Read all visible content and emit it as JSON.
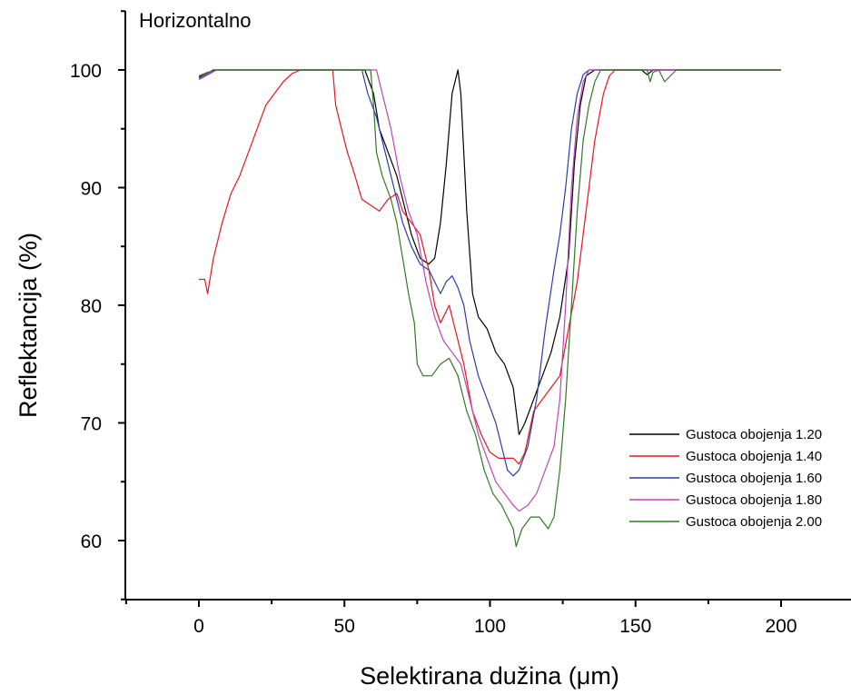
{
  "chart_data": {
    "type": "line",
    "title": "Horizontalno",
    "xlabel": "Selektirana dužina (μm)",
    "ylabel": "Reflektancija (%)",
    "xlim": [
      -25,
      225
    ],
    "ylim": [
      55,
      105
    ],
    "xticks": [
      0,
      50,
      100,
      150,
      200
    ],
    "yticks": [
      60,
      70,
      80,
      90,
      100
    ],
    "x_tick_labels": [
      "0",
      "50",
      "100",
      "150",
      "200"
    ],
    "y_tick_labels": [
      "60",
      "70",
      "80",
      "90",
      "100"
    ],
    "grid": false,
    "legend_position": "lower-right",
    "series": [
      {
        "name": "Gustoca obojenja 1.20",
        "color": "#000000",
        "points": [
          [
            0,
            99.4
          ],
          [
            2,
            99.6
          ],
          [
            5,
            100
          ],
          [
            57,
            100
          ],
          [
            60,
            98
          ],
          [
            62,
            95
          ],
          [
            65,
            93
          ],
          [
            68,
            91
          ],
          [
            70,
            89
          ],
          [
            73,
            86
          ],
          [
            76,
            84
          ],
          [
            79,
            83.5
          ],
          [
            81,
            84
          ],
          [
            83,
            87
          ],
          [
            85,
            92
          ],
          [
            87,
            98
          ],
          [
            89,
            100
          ],
          [
            90,
            98
          ],
          [
            92,
            88
          ],
          [
            94,
            81
          ],
          [
            96,
            79
          ],
          [
            99,
            78
          ],
          [
            102,
            76
          ],
          [
            105,
            75
          ],
          [
            108,
            73
          ],
          [
            110,
            69
          ],
          [
            112,
            70
          ],
          [
            115,
            72
          ],
          [
            118,
            74
          ],
          [
            121,
            76
          ],
          [
            124,
            79
          ],
          [
            127,
            84
          ],
          [
            129,
            92
          ],
          [
            131,
            97
          ],
          [
            133,
            99.5
          ],
          [
            136,
            100
          ],
          [
            152,
            100
          ],
          [
            154,
            99.6
          ],
          [
            156,
            100
          ],
          [
            200,
            100
          ]
        ]
      },
      {
        "name": "Gustoca obojenja 1.40",
        "color": "#e8161b",
        "points": [
          [
            0,
            82.2
          ],
          [
            2,
            82.2
          ],
          [
            3,
            81
          ],
          [
            5,
            84
          ],
          [
            8,
            87
          ],
          [
            11,
            89.5
          ],
          [
            14,
            91
          ],
          [
            17,
            93
          ],
          [
            20,
            95
          ],
          [
            23,
            97
          ],
          [
            26,
            98
          ],
          [
            29,
            99
          ],
          [
            32,
            99.7
          ],
          [
            35,
            100
          ],
          [
            46,
            100
          ],
          [
            47,
            97
          ],
          [
            49,
            95
          ],
          [
            51,
            93
          ],
          [
            53,
            91.5
          ],
          [
            56,
            89
          ],
          [
            59,
            88.5
          ],
          [
            62,
            88
          ],
          [
            65,
            89
          ],
          [
            68,
            89.5
          ],
          [
            70,
            88
          ],
          [
            73,
            87
          ],
          [
            76,
            86
          ],
          [
            79,
            83
          ],
          [
            81,
            80
          ],
          [
            83,
            78.5
          ],
          [
            86,
            80
          ],
          [
            88,
            78
          ],
          [
            91,
            75
          ],
          [
            94,
            71
          ],
          [
            97,
            69
          ],
          [
            100,
            67.5
          ],
          [
            103,
            67
          ],
          [
            106,
            67
          ],
          [
            108,
            67
          ],
          [
            110,
            66.5
          ],
          [
            112,
            67.5
          ],
          [
            115,
            71
          ],
          [
            118,
            72
          ],
          [
            121,
            73
          ],
          [
            124,
            74
          ],
          [
            127,
            78
          ],
          [
            130,
            82
          ],
          [
            133,
            88
          ],
          [
            136,
            94
          ],
          [
            139,
            98
          ],
          [
            141,
            99.5
          ],
          [
            143,
            100
          ],
          [
            200,
            100
          ]
        ]
      },
      {
        "name": "Gustoca obojenja 1.60",
        "color": "#2a3ea8",
        "points": [
          [
            0,
            99.2
          ],
          [
            3,
            99.6
          ],
          [
            6,
            100
          ],
          [
            56,
            100
          ],
          [
            58,
            98
          ],
          [
            61,
            96
          ],
          [
            64,
            93
          ],
          [
            67,
            90
          ],
          [
            70,
            87
          ],
          [
            73,
            85
          ],
          [
            76,
            83.5
          ],
          [
            79,
            83
          ],
          [
            81,
            82
          ],
          [
            83,
            81
          ],
          [
            85,
            82
          ],
          [
            87,
            82.5
          ],
          [
            89,
            81.5
          ],
          [
            91,
            80
          ],
          [
            93,
            77
          ],
          [
            96,
            74
          ],
          [
            99,
            72
          ],
          [
            102,
            70
          ],
          [
            104,
            68
          ],
          [
            106,
            66
          ],
          [
            108,
            65.5
          ],
          [
            110,
            66
          ],
          [
            113,
            68
          ],
          [
            116,
            72
          ],
          [
            119,
            78
          ],
          [
            122,
            83
          ],
          [
            124,
            86
          ],
          [
            126,
            90
          ],
          [
            128,
            95
          ],
          [
            130,
            98
          ],
          [
            132,
            99.6
          ],
          [
            134,
            100
          ],
          [
            200,
            100
          ]
        ]
      },
      {
        "name": "Gustoca obojenja 1.80",
        "color": "#c142b8",
        "points": [
          [
            0,
            99.3
          ],
          [
            3,
            99.7
          ],
          [
            6,
            100
          ],
          [
            61,
            100
          ],
          [
            63,
            98
          ],
          [
            66,
            95
          ],
          [
            69,
            91
          ],
          [
            72,
            88
          ],
          [
            75,
            86
          ],
          [
            78,
            82
          ],
          [
            81,
            79
          ],
          [
            84,
            77
          ],
          [
            87,
            76
          ],
          [
            90,
            75
          ],
          [
            93,
            72
          ],
          [
            96,
            69
          ],
          [
            99,
            67
          ],
          [
            102,
            65
          ],
          [
            105,
            64
          ],
          [
            108,
            63
          ],
          [
            110,
            62.5
          ],
          [
            113,
            63
          ],
          [
            116,
            64
          ],
          [
            119,
            66
          ],
          [
            122,
            68
          ],
          [
            124,
            72
          ],
          [
            126,
            80
          ],
          [
            128,
            90
          ],
          [
            130,
            96
          ],
          [
            132,
            99
          ],
          [
            134,
            100
          ],
          [
            200,
            100
          ]
        ]
      },
      {
        "name": "Gustoca obojenja 2.00",
        "color": "#2f7a22",
        "points": [
          [
            0,
            99.5
          ],
          [
            3,
            99.8
          ],
          [
            6,
            100
          ],
          [
            59,
            100
          ],
          [
            60,
            97
          ],
          [
            61,
            93
          ],
          [
            63,
            91
          ],
          [
            66,
            89
          ],
          [
            68,
            87
          ],
          [
            70,
            84
          ],
          [
            72,
            81
          ],
          [
            74,
            78.5
          ],
          [
            75,
            75
          ],
          [
            77,
            74
          ],
          [
            80,
            74
          ],
          [
            83,
            75
          ],
          [
            86,
            75.5
          ],
          [
            89,
            74
          ],
          [
            92,
            71
          ],
          [
            95,
            69
          ],
          [
            98,
            66
          ],
          [
            101,
            64
          ],
          [
            104,
            63
          ],
          [
            106,
            62
          ],
          [
            108,
            61
          ],
          [
            109,
            59.5
          ],
          [
            111,
            61
          ],
          [
            114,
            62
          ],
          [
            117,
            62
          ],
          [
            120,
            61
          ],
          [
            122,
            62
          ],
          [
            124,
            66
          ],
          [
            126,
            72
          ],
          [
            128,
            80
          ],
          [
            130,
            88
          ],
          [
            132,
            94
          ],
          [
            134,
            97
          ],
          [
            136,
            99
          ],
          [
            138,
            100
          ],
          [
            154,
            100
          ],
          [
            155,
            99
          ],
          [
            156,
            99.8
          ],
          [
            158,
            100
          ],
          [
            160,
            99
          ],
          [
            162,
            99.5
          ],
          [
            164,
            100
          ],
          [
            200,
            100
          ]
        ]
      }
    ]
  }
}
